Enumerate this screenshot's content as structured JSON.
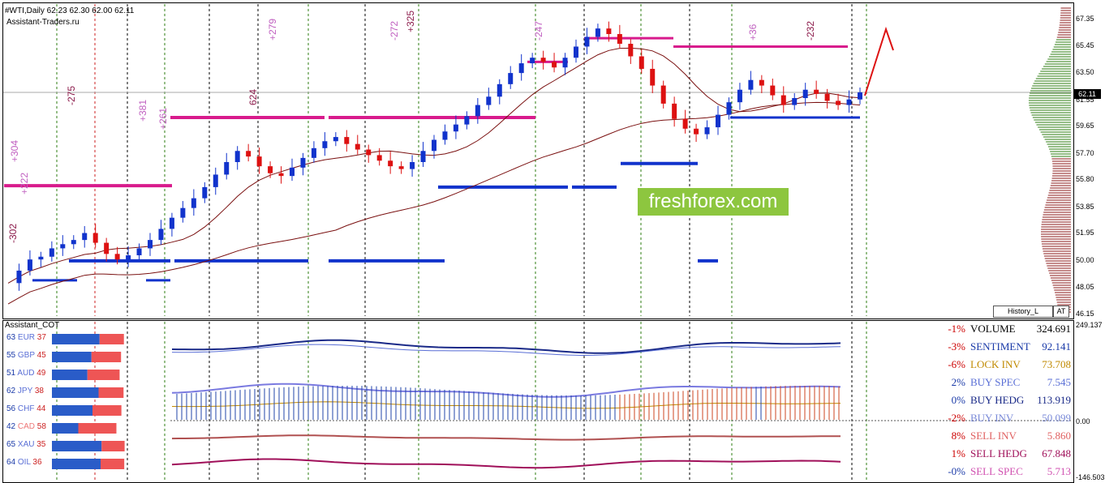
{
  "header": {
    "symbol_line": "#WTI,Daily  62.23 62.30 62.00 62.11",
    "source": "Assistant-Traders.ru"
  },
  "main_axis": {
    "ticks": [
      "67.35",
      "65.45",
      "63.50",
      "61.55",
      "59.65",
      "57.70",
      "55.80",
      "53.85",
      "51.95",
      "50.00",
      "48.05",
      "46.15"
    ],
    "current_price": "62.11"
  },
  "indicator_axis": {
    "ticks": [
      "249.137",
      "0.00",
      "-146.503"
    ]
  },
  "buttons": {
    "history": "History_L",
    "at": "AT"
  },
  "watermark": "freshforex.com",
  "chart_data": {
    "type": "candlestick",
    "title": "#WTI,Daily",
    "ohlc_current": {
      "open": 62.23,
      "high": 62.3,
      "low": 62.0,
      "close": 62.11
    },
    "ylim": [
      46.15,
      67.35
    ],
    "close_path": [
      48.4,
      49.3,
      50.1,
      50.3,
      50.9,
      51.2,
      51.5,
      52.0,
      51.3,
      50.5,
      50.1,
      50.4,
      50.9,
      51.5,
      52.3,
      53.1,
      53.8,
      54.5,
      55.3,
      56.2,
      57.1,
      57.9,
      57.5,
      56.8,
      56.3,
      56.1,
      56.7,
      57.4,
      58.1,
      58.6,
      58.9,
      58.4,
      58.0,
      57.6,
      57.2,
      56.8,
      56.6,
      57.1,
      57.9,
      58.7,
      59.3,
      59.8,
      60.4,
      61.2,
      61.8,
      62.7,
      63.5,
      64.2,
      64.6,
      64.3,
      63.9,
      64.6,
      65.4,
      66.1,
      66.7,
      66.3,
      65.6,
      64.7,
      63.8,
      62.6,
      61.3,
      60.2,
      59.5,
      59.1,
      59.6,
      60.5,
      61.4,
      62.3,
      63.0,
      62.6,
      61.9,
      61.2,
      61.7,
      62.3,
      62.0,
      61.5,
      61.2,
      61.6,
      62.11
    ],
    "labels_top": [
      "-302",
      "+304",
      "+222",
      "-275",
      "+381",
      "+261",
      "624",
      "+279",
      "-272",
      "+325",
      "-247",
      "+36",
      "-232"
    ],
    "cot_rows": [
      {
        "left": "63",
        "cur": "EUR",
        "right": "37"
      },
      {
        "left": "55",
        "cur": "GBP",
        "right": "45"
      },
      {
        "left": "51",
        "cur": "AUD",
        "right": "49"
      },
      {
        "left": "62",
        "cur": "JPY",
        "right": "38"
      },
      {
        "left": "56",
        "cur": "CHF",
        "right": "44"
      },
      {
        "left": "42",
        "cur": "CAD",
        "right": "58"
      },
      {
        "left": "65",
        "cur": "XAU",
        "right": "35"
      },
      {
        "left": "64",
        "cur": "OIL",
        "right": "36"
      }
    ],
    "stats": [
      {
        "pct": "-1%",
        "name": "VOLUME",
        "value": "324.691",
        "color": "#000000",
        "pct_color": "#cc0000"
      },
      {
        "pct": "-3%",
        "name": "SENTIMENT",
        "value": "92.141",
        "color": "#1a3aa8",
        "pct_color": "#cc0000"
      },
      {
        "pct": "-6%",
        "name": "LOCK INV",
        "value": "73.708",
        "color": "#c08a00",
        "pct_color": "#cc0000"
      },
      {
        "pct": "2%",
        "name": "BUY SPEC",
        "value": "7.545",
        "color": "#5a6fd6",
        "pct_color": "#1a3aa8"
      },
      {
        "pct": "0%",
        "name": "BUY HEDG",
        "value": "113.919",
        "color": "#1a2a88",
        "pct_color": "#1a3aa8"
      },
      {
        "pct": "-2%",
        "name": "BUY INV",
        "value": "50.099",
        "color": "#7a8ad8",
        "pct_color": "#cc0000"
      },
      {
        "pct": "8%",
        "name": "SELL INV",
        "value": "5.860",
        "color": "#e06060",
        "pct_color": "#cc0000"
      },
      {
        "pct": "1%",
        "name": "SELL HEDG",
        "value": "67.848",
        "color": "#a0105a",
        "pct_color": "#cc0000"
      },
      {
        "pct": "-0%",
        "name": "SELL SPEC",
        "value": "5.713",
        "color": "#d050b0",
        "pct_color": "#1a3aa8"
      }
    ]
  },
  "indicator_title": "Assistant_COT",
  "colors": {
    "bull": "#1133cc",
    "bear": "#dd1111",
    "magenta": "#d81b8c",
    "volume_green": "#2e7d10",
    "volume_red": "#8b1a1a"
  }
}
